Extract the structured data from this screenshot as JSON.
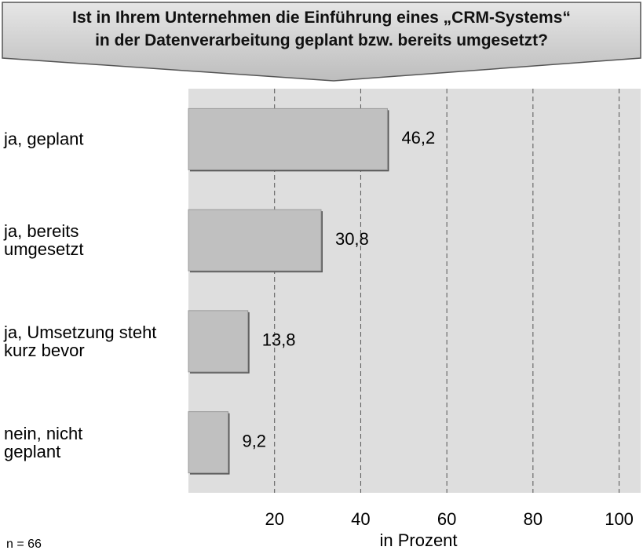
{
  "chart_data": {
    "type": "bar",
    "orientation": "horizontal",
    "title": "Ist in Ihrem Unternehmen die Einführung eines „CRM-Systems“\nin der Datenverarbeitung geplant bzw. bereits umgesetzt?",
    "categories": [
      "ja, geplant",
      "ja, bereits\numgesetzt",
      "ja, Umsetzung steht\nkurz bevor",
      "nein, nicht\ngeplant"
    ],
    "values": [
      46.2,
      30.8,
      13.8,
      9.2
    ],
    "value_labels": [
      "46,2",
      "30,8",
      "13,8",
      "9,2"
    ],
    "color": "#c0c0c0",
    "xlim": [
      0,
      105
    ],
    "xticks": [
      20,
      40,
      60,
      80,
      100
    ],
    "grid": true,
    "x_label": "in Prozent",
    "note": "n = 66"
  }
}
